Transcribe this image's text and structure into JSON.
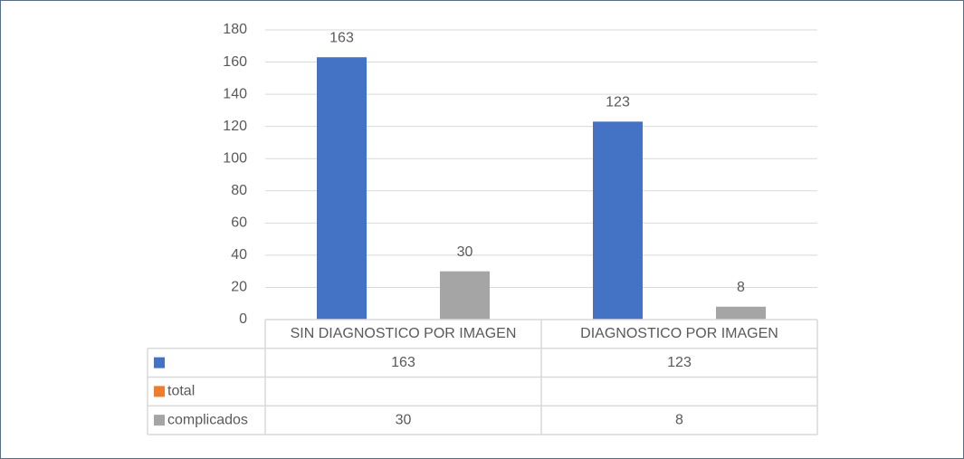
{
  "chart_data": {
    "type": "bar",
    "categories": [
      "SIN DIAGNOSTICO POR IMAGEN",
      "DIAGNOSTICO POR IMAGEN"
    ],
    "series": [
      {
        "color": "#4472c4",
        "values": [
          163,
          123
        ]
      },
      {
        "name": "total",
        "color": "#ed7d31",
        "values": [
          null,
          null
        ]
      },
      {
        "name": "complicados",
        "color": "#a5a5a5",
        "values": [
          30,
          8
        ]
      }
    ],
    "ylim": [
      0,
      180
    ],
    "yticks": [
      0,
      20,
      40,
      60,
      80,
      100,
      120,
      140,
      160,
      180
    ],
    "grid": true,
    "data_table": true
  }
}
